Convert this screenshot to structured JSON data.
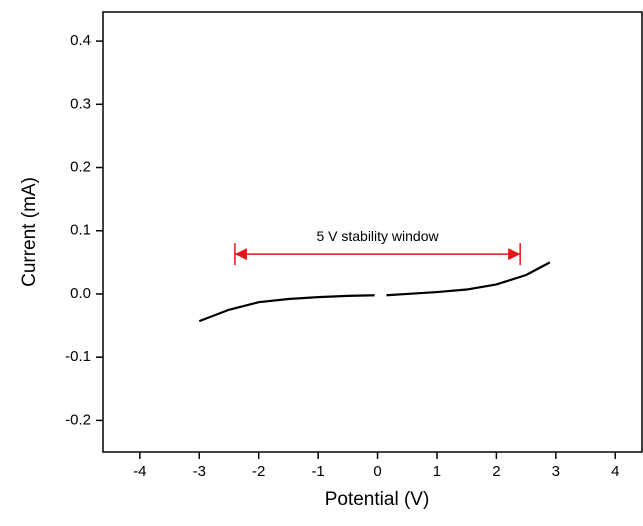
{
  "chart_data": {
    "type": "line",
    "x_label": "Potential (V)",
    "y_label": "Current (mA)",
    "series": [
      {
        "color": "#000000",
        "x": [
          -3,
          -2.5,
          -2,
          -1.5,
          -1,
          -0.5,
          -0.05,
          null,
          0.15,
          0.5,
          1,
          1.5,
          2,
          2.5,
          2.9
        ],
        "values": [
          -0.043,
          -0.025,
          -0.013,
          -0.008,
          -0.005,
          -0.003,
          -0.002,
          null,
          -0.002,
          0.0,
          0.003,
          0.007,
          0.015,
          0.03,
          0.05
        ]
      }
    ],
    "annotation": {
      "text": "5 V stability window",
      "x_start": -2.4,
      "x_end": 2.4,
      "y": 0.063,
      "color": "#e8131b"
    },
    "xlim": [
      -4.62,
      4.45
    ],
    "xticks": [
      -4,
      -3,
      -2,
      -1,
      0,
      1,
      2,
      3,
      4
    ],
    "ylim": [
      -0.25,
      0.446
    ],
    "yticks": [
      -0.2,
      -0.1,
      {
        "value": 0,
        "label": "0.0"
      },
      0.1,
      0.2,
      0.3,
      0.4
    ],
    "grid": false
  }
}
